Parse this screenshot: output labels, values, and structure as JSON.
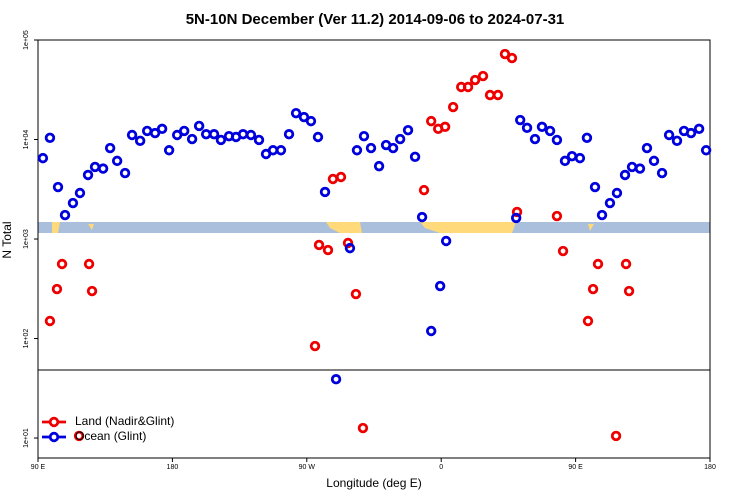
{
  "chart_data": {
    "type": "scatter",
    "title": "5N-10N December (Ver 11.2)   2014-09-06 to 2024-07-31",
    "x_label": "Longitude (deg E)",
    "y_label": "N Total",
    "log_y": true,
    "legend": "lower left",
    "xlim": [
      90,
      540
    ],
    "xticks": [
      {
        "value": 90,
        "label": "90 E"
      },
      {
        "value": 180,
        "label": "180"
      },
      {
        "value": 270,
        "label": "90 W"
      },
      {
        "value": 360,
        "label": "0"
      },
      {
        "value": 450,
        "label": "90 E"
      },
      {
        "value": 540,
        "label": "180"
      }
    ],
    "ylim": [
      6.3,
      100000
    ],
    "yticks": [
      {
        "value": 10,
        "label": "1e+01"
      },
      {
        "value": 100,
        "label": "1e+02"
      },
      {
        "value": 1000,
        "label": "1e+03"
      },
      {
        "value": 10000,
        "label": "1e+04"
      },
      {
        "value": 100000,
        "label": "1e+05"
      }
    ],
    "series": [
      {
        "name": "Land (Nadir&Glint)",
        "color": "#ee0000",
        "x": [
          98.0,
          102.7,
          106.1,
          117.5,
          124.2,
          126.2,
          275.5,
          278.2,
          284.2,
          287.5,
          292.9,
          297.6,
          302.9,
          307.6,
          348.5,
          353.3,
          358.0,
          362.6,
          368.0,
          373.4,
          378.0,
          382.7,
          388.0,
          392.7,
          398.0,
          402.7,
          407.4,
          410.8,
          437.5,
          441.6,
          458.3,
          461.7,
          465.0,
          477.1,
          483.8,
          485.8
        ],
        "values": [
          150,
          314,
          561,
          10.5,
          561,
          300,
          84,
          871,
          775,
          4010,
          4200,
          912,
          280,
          12.6,
          3100,
          15300,
          12800,
          13400,
          21200,
          33700,
          33700,
          39600,
          43400,
          28000,
          28000,
          72300,
          65900,
          1870,
          1700,
          757,
          150,
          314,
          561,
          10.5,
          561,
          300
        ]
      },
      {
        "name": "Ocean (Glint)",
        "color": "#0000dd",
        "x": [
          93.3,
          98.0,
          103.4,
          108.1,
          113.4,
          118.1,
          123.5,
          128.2,
          133.6,
          138.3,
          143.0,
          148.3,
          153.0,
          158.4,
          163.1,
          168.4,
          173.1,
          177.8,
          183.2,
          187.9,
          193.2,
          197.9,
          202.6,
          207.9,
          212.5,
          217.9,
          222.6,
          227.3,
          232.6,
          238.0,
          242.7,
          247.4,
          252.7,
          258.1,
          262.8,
          268.1,
          272.8,
          277.5,
          282.2,
          289.6,
          298.9,
          303.6,
          308.3,
          313.0,
          318.4,
          323.1,
          327.8,
          332.5,
          337.8,
          342.5,
          347.2,
          353.3,
          359.3,
          363.3,
          410.2,
          412.9,
          417.5,
          422.8,
          427.5,
          432.9,
          437.5,
          442.9,
          447.6,
          452.9,
          457.6,
          463.0,
          467.7,
          473.0,
          477.7,
          483.1,
          487.8,
          493.1,
          497.8,
          502.5,
          507.9,
          512.6,
          517.9,
          522.6,
          527.3,
          532.7,
          537.4
        ],
        "values": [
          6500,
          10400,
          3330,
          1740,
          2300,
          2900,
          4400,
          5300,
          5100,
          8200,
          6100,
          4600,
          11100,
          9700,
          12200,
          11600,
          12800,
          7800,
          11100,
          12200,
          10100,
          13700,
          11300,
          11300,
          9900,
          10800,
          10600,
          11300,
          11100,
          9900,
          7150,
          7800,
          7800,
          11300,
          18400,
          16800,
          15300,
          10600,
          2970,
          39,
          810,
          7800,
          10800,
          8200,
          5400,
          8800,
          8200,
          10100,
          12400,
          6700,
          1660,
          119,
          337,
          955,
          1630,
          15700,
          13100,
          10100,
          13400,
          12200,
          9900,
          6100,
          6800,
          6500,
          10400,
          3330,
          1740,
          2300,
          2900,
          4400,
          5300,
          5100,
          8200,
          6100,
          4600,
          11100,
          9700,
          12200,
          11600,
          12800,
          7800
        ]
      }
    ]
  }
}
